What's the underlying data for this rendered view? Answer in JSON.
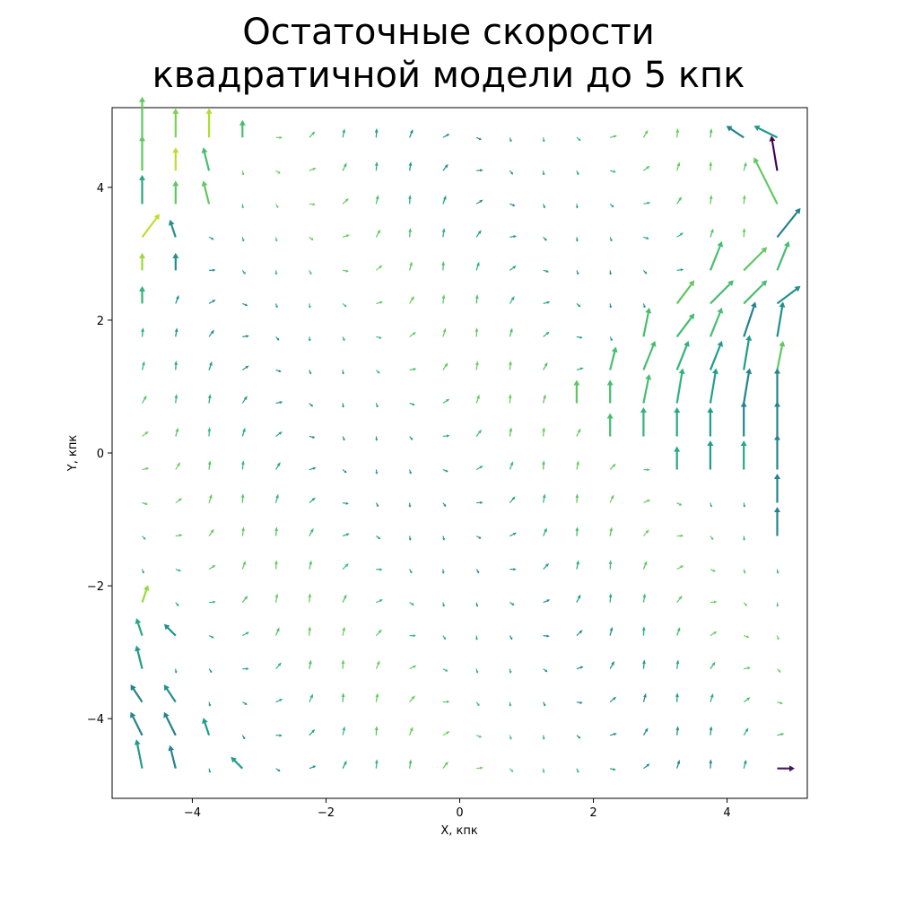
{
  "chart_data": {
    "type": "quiver",
    "title": "Остаточные скорости\nквадратичной модели до 5 кпк",
    "xlabel": "X, кпк",
    "ylabel": "Y, кпк",
    "xlim": [
      -5.2,
      5.2
    ],
    "ylim": [
      -5.2,
      5.2
    ],
    "xticks": [
      -4,
      -2,
      0,
      2,
      4
    ],
    "yticks": [
      -4,
      -2,
      0,
      2,
      4
    ],
    "xtick_labels": [
      "−4",
      "−2",
      "0",
      "2",
      "4"
    ],
    "ytick_labels": [
      "−4",
      "−2",
      "0",
      "2",
      "4"
    ],
    "colormap": "viridis",
    "grid": false,
    "vectors": [
      {
        "x": -4.75,
        "y": 4.75,
        "u": 0.0,
        "v": 0.35,
        "c": 0.75
      },
      {
        "x": -4.25,
        "y": 4.75,
        "u": 0.0,
        "v": 0.25,
        "c": 0.8
      },
      {
        "x": -3.75,
        "y": 4.75,
        "u": 0.0,
        "v": 0.25,
        "c": 0.88
      },
      {
        "x": -3.25,
        "y": 4.75,
        "u": 0.0,
        "v": 0.15,
        "c": 0.7
      },
      {
        "x": 4.25,
        "y": 4.75,
        "u": -0.15,
        "v": 0.1,
        "c": 0.45
      },
      {
        "x": 4.75,
        "y": 4.75,
        "u": -0.2,
        "v": 0.1,
        "c": 0.55
      },
      {
        "x": -4.75,
        "y": 4.25,
        "u": 0.0,
        "v": 0.3,
        "c": 0.75
      },
      {
        "x": -4.25,
        "y": 4.25,
        "u": 0.0,
        "v": 0.2,
        "c": 0.9
      },
      {
        "x": -3.75,
        "y": 4.25,
        "u": -0.05,
        "v": 0.2,
        "c": 0.7
      },
      {
        "x": 4.75,
        "y": 4.25,
        "u": -0.05,
        "v": 0.3,
        "c": 0.0
      },
      {
        "x": -4.75,
        "y": 3.75,
        "u": 0.0,
        "v": 0.25,
        "c": 0.6
      },
      {
        "x": -4.25,
        "y": 3.75,
        "u": 0.0,
        "v": 0.2,
        "c": 0.75
      },
      {
        "x": -3.75,
        "y": 3.75,
        "u": -0.05,
        "v": 0.2,
        "c": 0.75
      },
      {
        "x": 4.75,
        "y": 3.75,
        "u": -0.2,
        "v": 0.4,
        "c": 0.75
      },
      {
        "x": -4.75,
        "y": 3.25,
        "u": 0.15,
        "v": 0.2,
        "c": 0.9
      },
      {
        "x": -4.25,
        "y": 3.25,
        "u": -0.05,
        "v": 0.15,
        "c": 0.5
      },
      {
        "x": 4.75,
        "y": 3.25,
        "u": 0.2,
        "v": 0.25,
        "c": 0.45
      },
      {
        "x": -4.75,
        "y": 2.75,
        "u": 0.0,
        "v": 0.15,
        "c": 0.85
      },
      {
        "x": -4.25,
        "y": 2.75,
        "u": 0.0,
        "v": 0.15,
        "c": 0.5
      },
      {
        "x": 3.75,
        "y": 2.75,
        "u": 0.1,
        "v": 0.25,
        "c": 0.7
      },
      {
        "x": 4.25,
        "y": 2.75,
        "u": 0.2,
        "v": 0.2,
        "c": 0.75
      },
      {
        "x": 4.75,
        "y": 2.75,
        "u": 0.1,
        "v": 0.25,
        "c": 0.7
      },
      {
        "x": -4.75,
        "y": 2.25,
        "u": 0.0,
        "v": 0.15,
        "c": 0.65
      },
      {
        "x": 3.25,
        "y": 2.25,
        "u": 0.15,
        "v": 0.2,
        "c": 0.75
      },
      {
        "x": 3.75,
        "y": 2.25,
        "u": 0.2,
        "v": 0.2,
        "c": 0.7
      },
      {
        "x": 4.25,
        "y": 2.25,
        "u": 0.2,
        "v": 0.2,
        "c": 0.7
      },
      {
        "x": 4.75,
        "y": 2.25,
        "u": 0.2,
        "v": 0.15,
        "c": 0.5
      },
      {
        "x": 2.75,
        "y": 1.75,
        "u": 0.05,
        "v": 0.25,
        "c": 0.7
      },
      {
        "x": 3.25,
        "y": 1.75,
        "u": 0.15,
        "v": 0.2,
        "c": 0.7
      },
      {
        "x": 3.75,
        "y": 1.75,
        "u": 0.1,
        "v": 0.25,
        "c": 0.7
      },
      {
        "x": 4.25,
        "y": 1.75,
        "u": 0.1,
        "v": 0.3,
        "c": 0.45
      },
      {
        "x": 4.75,
        "y": 1.75,
        "u": 0.05,
        "v": 0.3,
        "c": 0.5
      },
      {
        "x": 2.25,
        "y": 1.25,
        "u": 0.05,
        "v": 0.2,
        "c": 0.7
      },
      {
        "x": 2.75,
        "y": 1.25,
        "u": 0.1,
        "v": 0.25,
        "c": 0.7
      },
      {
        "x": 3.25,
        "y": 1.25,
        "u": 0.1,
        "v": 0.25,
        "c": 0.65
      },
      {
        "x": 3.75,
        "y": 1.25,
        "u": 0.1,
        "v": 0.25,
        "c": 0.55
      },
      {
        "x": 4.25,
        "y": 1.25,
        "u": 0.05,
        "v": 0.3,
        "c": 0.55
      },
      {
        "x": 4.75,
        "y": 1.25,
        "u": 0.05,
        "v": 0.25,
        "c": 0.75
      },
      {
        "x": 1.75,
        "y": 0.75,
        "u": 0.0,
        "v": 0.2,
        "c": 0.75
      },
      {
        "x": 2.25,
        "y": 0.75,
        "u": 0.0,
        "v": 0.2,
        "c": 0.7
      },
      {
        "x": 2.75,
        "y": 0.75,
        "u": 0.05,
        "v": 0.25,
        "c": 0.7
      },
      {
        "x": 3.25,
        "y": 0.75,
        "u": 0.05,
        "v": 0.3,
        "c": 0.65
      },
      {
        "x": 3.75,
        "y": 0.75,
        "u": 0.05,
        "v": 0.3,
        "c": 0.55
      },
      {
        "x": 4.25,
        "y": 0.75,
        "u": 0.05,
        "v": 0.3,
        "c": 0.45
      },
      {
        "x": 4.75,
        "y": 0.75,
        "u": 0.0,
        "v": 0.3,
        "c": 0.45
      },
      {
        "x": 2.25,
        "y": 0.25,
        "u": 0.0,
        "v": 0.2,
        "c": 0.7
      },
      {
        "x": 2.75,
        "y": 0.25,
        "u": 0.0,
        "v": 0.25,
        "c": 0.65
      },
      {
        "x": 3.25,
        "y": 0.25,
        "u": 0.0,
        "v": 0.25,
        "c": 0.6
      },
      {
        "x": 3.75,
        "y": 0.25,
        "u": 0.0,
        "v": 0.25,
        "c": 0.55
      },
      {
        "x": 4.25,
        "y": 0.25,
        "u": 0.0,
        "v": 0.3,
        "c": 0.45
      },
      {
        "x": 4.75,
        "y": 0.25,
        "u": 0.0,
        "v": 0.3,
        "c": 0.45
      },
      {
        "x": 3.25,
        "y": -0.25,
        "u": 0.0,
        "v": 0.2,
        "c": 0.6
      },
      {
        "x": 3.75,
        "y": -0.25,
        "u": 0.0,
        "v": 0.25,
        "c": 0.55
      },
      {
        "x": 4.25,
        "y": -0.25,
        "u": 0.0,
        "v": 0.25,
        "c": 0.6
      },
      {
        "x": 4.75,
        "y": -0.25,
        "u": 0.0,
        "v": 0.3,
        "c": 0.45
      },
      {
        "x": 4.75,
        "y": -0.75,
        "u": 0.0,
        "v": 0.25,
        "c": 0.45
      },
      {
        "x": 4.75,
        "y": -1.25,
        "u": 0.0,
        "v": 0.25,
        "c": 0.45
      },
      {
        "x": -4.75,
        "y": -2.25,
        "u": 0.05,
        "v": 0.15,
        "c": 0.85
      },
      {
        "x": -4.75,
        "y": -2.75,
        "u": -0.05,
        "v": 0.15,
        "c": 0.6
      },
      {
        "x": -4.25,
        "y": -2.75,
        "u": -0.1,
        "v": 0.1,
        "c": 0.5
      },
      {
        "x": -4.75,
        "y": -3.25,
        "u": -0.05,
        "v": 0.2,
        "c": 0.55
      },
      {
        "x": -4.75,
        "y": -3.75,
        "u": -0.1,
        "v": 0.15,
        "c": 0.45
      },
      {
        "x": -4.25,
        "y": -3.75,
        "u": -0.1,
        "v": 0.15,
        "c": 0.5
      },
      {
        "x": -4.75,
        "y": -4.25,
        "u": -0.1,
        "v": 0.2,
        "c": 0.45
      },
      {
        "x": -4.25,
        "y": -4.25,
        "u": -0.1,
        "v": 0.2,
        "c": 0.45
      },
      {
        "x": -3.75,
        "y": -4.25,
        "u": -0.05,
        "v": 0.15,
        "c": 0.55
      },
      {
        "x": -4.75,
        "y": -4.75,
        "u": -0.05,
        "v": 0.25,
        "c": 0.55
      },
      {
        "x": -4.25,
        "y": -4.75,
        "u": -0.05,
        "v": 0.2,
        "c": 0.45
      },
      {
        "x": -3.25,
        "y": -4.75,
        "u": -0.1,
        "v": 0.1,
        "c": 0.55
      },
      {
        "x": 4.75,
        "y": -4.75,
        "u": 0.15,
        "v": 0.0,
        "c": 0.05
      }
    ]
  }
}
